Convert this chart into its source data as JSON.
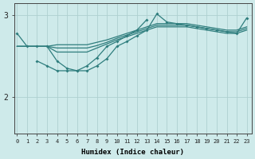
{
  "xlabel": "Humidex (Indice chaleur)",
  "bg_color": "#ceeaea",
  "line_color": "#2e7d7d",
  "grid_color": "#aed0d0",
  "x_ticks": [
    0,
    1,
    2,
    3,
    4,
    5,
    6,
    7,
    8,
    9,
    10,
    11,
    12,
    13,
    14,
    15,
    16,
    17,
    18,
    19,
    20,
    21,
    22,
    23
  ],
  "y_ticks": [
    2,
    3
  ],
  "ylim": [
    1.55,
    3.15
  ],
  "xlim": [
    -0.3,
    23.5
  ],
  "s1": [
    2.78,
    2.62,
    2.62,
    2.62,
    2.44,
    2.35,
    2.32,
    2.32,
    2.38,
    2.47,
    2.62,
    2.68,
    2.75,
    2.82,
    3.02,
    2.92,
    2.9,
    2.88,
    2.86,
    2.84,
    2.82,
    2.8,
    2.78,
    2.97
  ],
  "s2_x0": 0,
  "s2": [
    2.62,
    2.62,
    2.62,
    2.62,
    2.55,
    2.55,
    2.55,
    2.55,
    2.6,
    2.65,
    2.7,
    2.74,
    2.78,
    2.82,
    2.86,
    2.86,
    2.86,
    2.86,
    2.84,
    2.82,
    2.8,
    2.78,
    2.78,
    2.82
  ],
  "s3": [
    2.62,
    2.62,
    2.62,
    2.62,
    2.6,
    2.6,
    2.6,
    2.6,
    2.63,
    2.67,
    2.72,
    2.76,
    2.8,
    2.84,
    2.88,
    2.88,
    2.88,
    2.88,
    2.86,
    2.84,
    2.82,
    2.8,
    2.8,
    2.84
  ],
  "s4": [
    2.62,
    2.62,
    2.62,
    2.62,
    2.64,
    2.64,
    2.64,
    2.64,
    2.67,
    2.7,
    2.74,
    2.78,
    2.82,
    2.86,
    2.9,
    2.9,
    2.9,
    2.9,
    2.88,
    2.86,
    2.84,
    2.82,
    2.82,
    2.86
  ],
  "s5_xstart": 2,
  "s5": [
    2.44,
    2.38,
    2.32,
    2.32,
    2.32,
    2.38,
    2.48,
    2.62,
    2.68,
    2.75,
    2.82,
    2.95
  ],
  "lw": 0.9,
  "ms": 2.0
}
